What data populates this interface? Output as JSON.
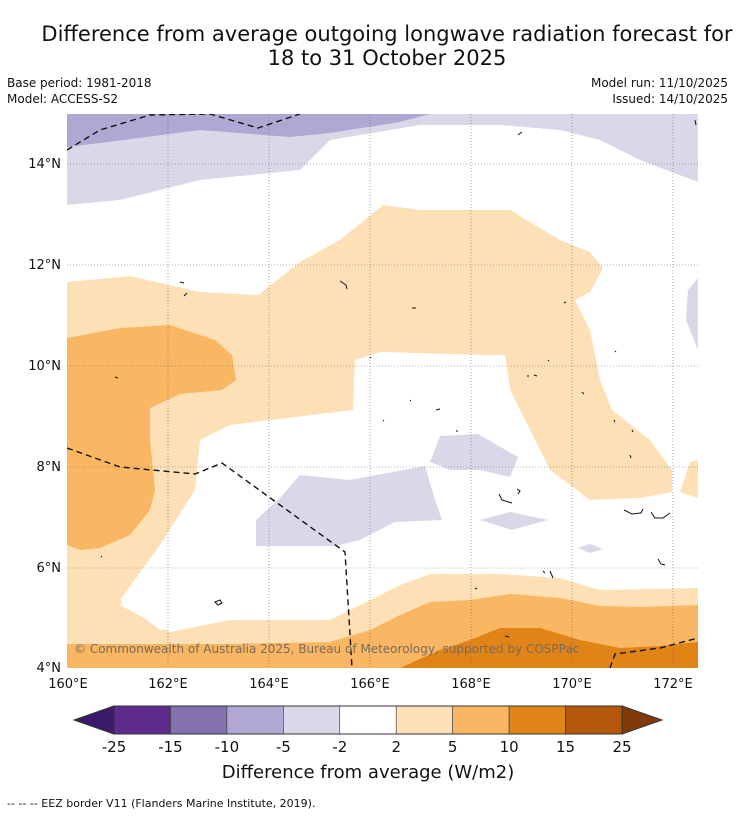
{
  "title": {
    "line1": "Difference from average outgoing longwave radiation forecast for",
    "line2": "18 to 31 October 2025"
  },
  "meta": {
    "base_period": "Base period: 1981-2018",
    "model": "Model: ACCESS-S2",
    "model_run": "Model run: 11/10/2025",
    "issued": "Issued: 14/10/2025"
  },
  "map": {
    "lat_ticks": [
      "14°N",
      "12°N",
      "10°N",
      "8°N",
      "6°N",
      "4°N"
    ],
    "lon_ticks": [
      "160°E",
      "162°E",
      "164°E",
      "166°E",
      "168°E",
      "170°E",
      "172°E"
    ],
    "credit": "© Commonwealth of Australia 2025, Bureau of Meteorology, supported by COSPPac"
  },
  "colorbar": {
    "labels": [
      "-25",
      "-15",
      "-10",
      "-5",
      "-2",
      "2",
      "5",
      "10",
      "15",
      "25"
    ],
    "colors": [
      "#3d1a6b",
      "#5e2a8c",
      "#8471b0",
      "#b0a8d2",
      "#d9d8e9",
      "#ffffff",
      "#fde0b5",
      "#f9b663",
      "#e08418",
      "#b3570a",
      "#7f3a08"
    ],
    "title": "Difference from average (W/m2)"
  },
  "footer": {
    "legend": "--  --  -- EEZ border V11 (Flanders Marine Institute, 2019)."
  }
}
